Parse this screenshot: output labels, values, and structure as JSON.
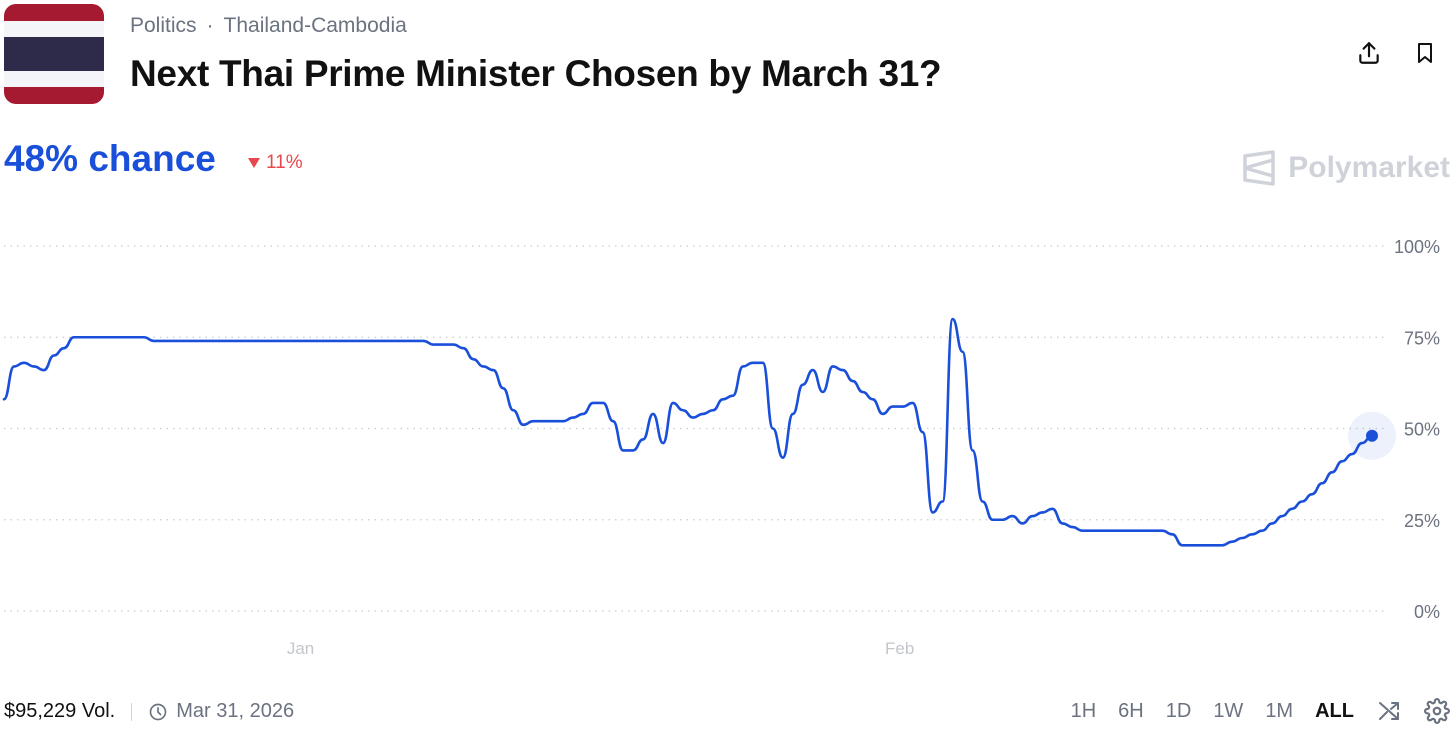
{
  "header": {
    "category": "Politics",
    "subcategory": "Thailand-Cambodia",
    "title": "Next Thai Prime Minister Chosen by March 31?",
    "share_icon": "share-icon",
    "bookmark_icon": "bookmark-icon"
  },
  "flag": {
    "stripes": [
      "#A51931",
      "#F4F5F8",
      "#2D2A4A",
      "#F4F5F8",
      "#A51931"
    ]
  },
  "summary": {
    "chance_text": "48% chance",
    "delta_text": "11%",
    "delta_direction": "down",
    "accent": "#1a4fd9",
    "delta_color": "#e5484d"
  },
  "brand": {
    "name": "Polymarket"
  },
  "chart_data": {
    "type": "line",
    "ylim": [
      0,
      100
    ],
    "ytick_labels": [
      "100%",
      "75%",
      "50%",
      "25%",
      "0%"
    ],
    "yticks": [
      100,
      75,
      50,
      25,
      0
    ],
    "grid": true,
    "xtick_labels": [
      "Jan",
      "Feb"
    ],
    "xticks": [
      30,
      90
    ],
    "x_range": [
      0,
      137
    ],
    "line_color": "#1a4fd9",
    "series": [
      {
        "x": [
          0,
          1,
          2,
          3,
          4,
          5,
          6,
          7,
          8,
          9,
          10,
          11,
          12,
          13,
          14,
          15,
          16,
          17,
          18,
          19,
          20,
          21,
          22,
          23,
          24,
          25,
          26,
          27,
          28,
          29,
          30,
          31,
          32,
          33,
          34,
          35,
          36,
          37,
          38,
          39,
          40,
          41,
          42,
          43,
          44,
          45,
          46,
          47,
          48,
          49,
          50,
          51,
          52,
          53,
          54,
          55,
          56,
          57,
          58,
          59,
          60,
          61,
          62,
          63,
          64,
          65,
          66,
          67,
          68,
          69,
          70,
          71,
          72,
          73,
          74,
          75,
          76,
          77,
          78,
          79,
          80,
          81,
          82,
          83,
          84,
          85,
          86,
          87,
          88,
          89,
          90,
          91,
          92,
          93,
          94,
          95,
          96,
          97,
          98,
          99,
          100,
          101,
          102,
          103,
          104,
          105,
          106,
          107,
          108,
          109,
          110,
          111,
          112,
          113,
          114,
          115,
          116,
          117,
          118,
          119,
          120,
          121,
          122,
          123,
          124,
          125,
          126,
          127,
          128,
          129,
          130,
          131,
          132,
          133,
          134,
          135,
          136,
          137
        ],
        "values": [
          58,
          67,
          68,
          67,
          66,
          70,
          72,
          75,
          75,
          75,
          75,
          75,
          75,
          75,
          75,
          74,
          74,
          74,
          74,
          74,
          74,
          74,
          74,
          74,
          74,
          74,
          74,
          74,
          74,
          74,
          74,
          74,
          74,
          74,
          74,
          74,
          74,
          74,
          74,
          74,
          74,
          74,
          74,
          73,
          73,
          73,
          72,
          69,
          67,
          66,
          61,
          55,
          51,
          52,
          52,
          52,
          52,
          53,
          54,
          57,
          57,
          52,
          44,
          44,
          47,
          54,
          46,
          57,
          55,
          53,
          54,
          55,
          58,
          59,
          67,
          68,
          68,
          50,
          42,
          54,
          62,
          66,
          60,
          67,
          66,
          63,
          60,
          58,
          54,
          56,
          56,
          57,
          49,
          27,
          30,
          80,
          71,
          44,
          30,
          25,
          25,
          26,
          24,
          26,
          27,
          28,
          24,
          23,
          22,
          22,
          22,
          22,
          22,
          22,
          22,
          22,
          22,
          21,
          18,
          18,
          18,
          18,
          18,
          19,
          20,
          21,
          22,
          24,
          26,
          28,
          30,
          32,
          35,
          38,
          41,
          43,
          46,
          48
        ],
        "last_point": 48
      }
    ]
  },
  "footer": {
    "volume": "$95,229 Vol.",
    "end_date": "Mar 31, 2026",
    "clock_icon": "clock-icon",
    "ranges": [
      "1H",
      "6H",
      "1D",
      "1W",
      "1M",
      "ALL"
    ],
    "active_range": "ALL",
    "shuffle_icon": "shuffle-icon",
    "settings_icon": "settings-icon"
  }
}
